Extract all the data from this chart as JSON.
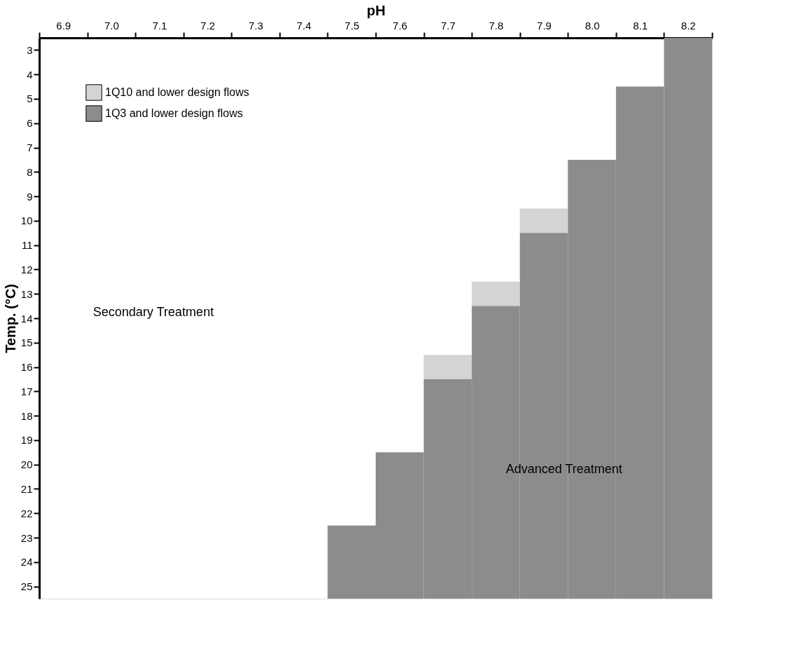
{
  "chart_data": {
    "type": "bar",
    "xlabel": "pH",
    "ylabel": "Temp. (°C)",
    "categories": [
      "6.9",
      "7.0",
      "7.1",
      "7.2",
      "7.3",
      "7.4",
      "7.5",
      "7.6",
      "7.7",
      "7.8",
      "7.9",
      "8.0",
      "8.1",
      "8.2"
    ],
    "ylim": [
      25.5,
      2.5
    ],
    "yticks": [
      3,
      4,
      5,
      6,
      7,
      8,
      9,
      10,
      11,
      12,
      13,
      14,
      15,
      16,
      17,
      18,
      19,
      20,
      21,
      22,
      23,
      24,
      25
    ],
    "series": [
      {
        "name": "1Q10 and lower design flows",
        "color": "#d4d4d4",
        "base": [
          null,
          null,
          null,
          null,
          null,
          null,
          null,
          null,
          15.5,
          12.5,
          9.5,
          null,
          null,
          null
        ],
        "values": [
          null,
          null,
          null,
          null,
          null,
          null,
          null,
          null,
          1,
          1,
          1,
          null,
          null,
          null
        ]
      },
      {
        "name": "1Q3 and lower design flows",
        "color": "#8c8c8c",
        "base": [
          null,
          null,
          null,
          null,
          null,
          null,
          22.5,
          19.5,
          16.5,
          13.5,
          10.5,
          7.5,
          4.5,
          2.5
        ],
        "values": [
          null,
          null,
          null,
          null,
          null,
          null,
          3,
          6,
          9,
          12,
          15,
          18,
          21,
          23
        ]
      }
    ],
    "legend": "top left",
    "annotations": [
      "Secondary Treatment",
      "Advanced Treatment"
    ]
  }
}
